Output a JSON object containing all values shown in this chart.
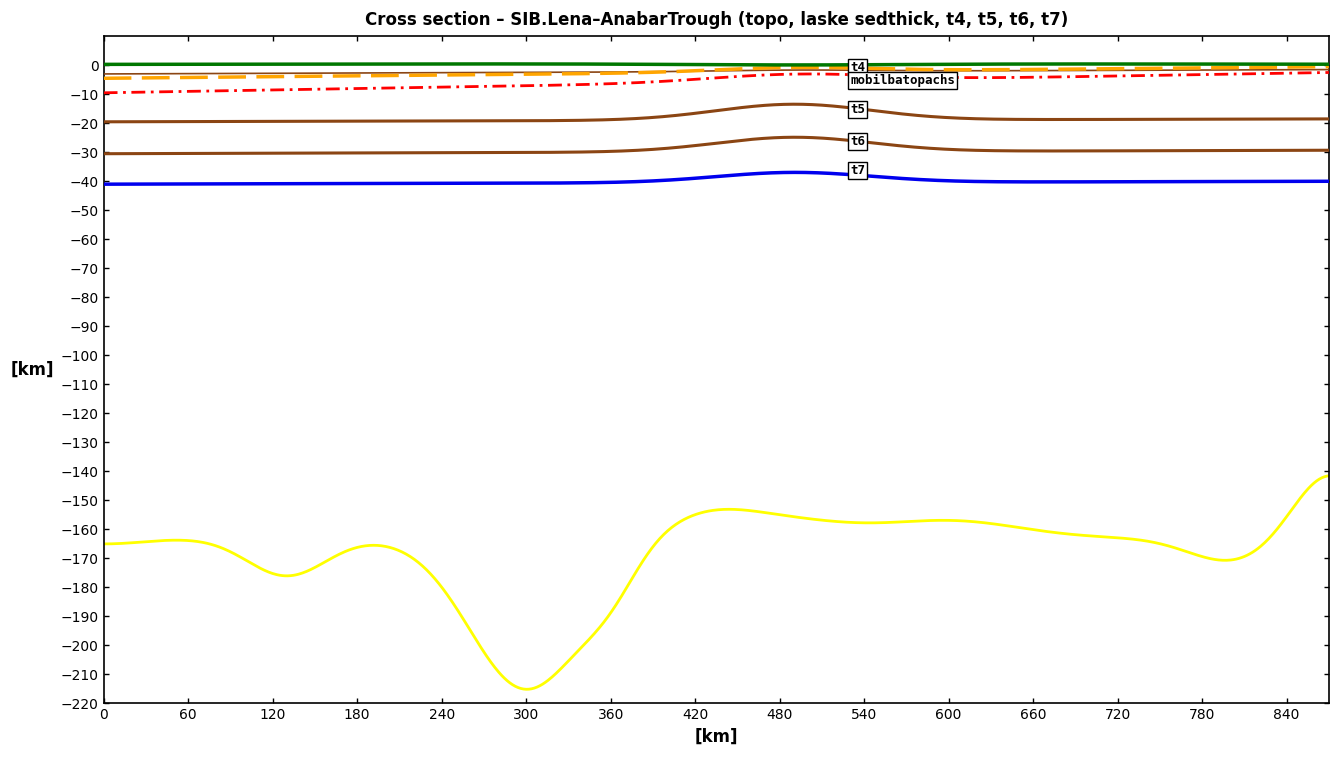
{
  "title": "Cross section – SIB.Lena–AnabarTrough (topo, laske sedthick, t4, t5, t6, t7)",
  "xlabel": "[km]",
  "ylabel": "[km]",
  "xlim": [
    0,
    870
  ],
  "ylim": [
    -220,
    10
  ],
  "xticks": [
    0,
    60,
    120,
    180,
    240,
    300,
    360,
    420,
    480,
    540,
    600,
    660,
    720,
    780,
    840
  ],
  "yticks": [
    0,
    -10,
    -20,
    -30,
    -40,
    -50,
    -60,
    -70,
    -80,
    -90,
    -100,
    -110,
    -120,
    -130,
    -140,
    -150,
    -160,
    -170,
    -180,
    -190,
    -200,
    -210,
    -220
  ],
  "bg_color": "#ffffff",
  "line_colors": {
    "topo": "#007700",
    "t4_orange": "#FFA500",
    "t4_red": "#FF0000",
    "t4_brown_thin": "#8B4513",
    "t5": "#8B4513",
    "t6": "#8B4513",
    "t7": "#0000EE",
    "yellow": "#FFFF00"
  },
  "annot_bbox": {
    "boxstyle": "square,pad=0.15",
    "fc": "white",
    "ec": "black",
    "lw": 1.0
  }
}
